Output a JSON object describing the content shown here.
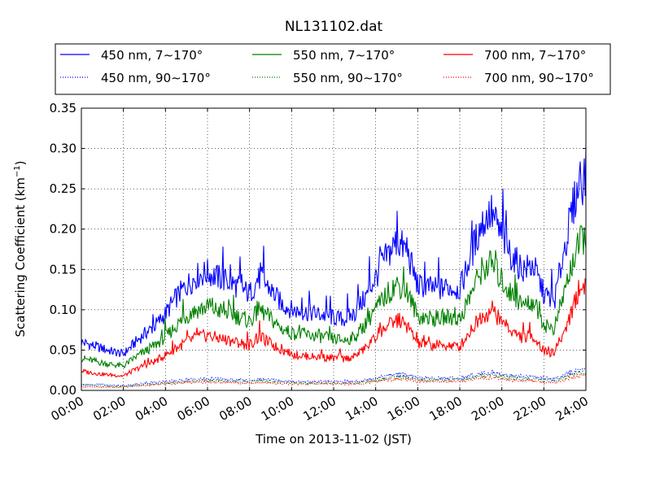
{
  "chart_data": {
    "type": "line",
    "title": "NL131102.dat",
    "xlabel": "Time on 2013-11-02 (JST)",
    "ylabel_main": "Scattering Coefficient (km",
    "ylabel_sup": "−1",
    "ylabel_tail": ")",
    "xlim": [
      "00:00",
      "24:00"
    ],
    "ylim": [
      0,
      0.35
    ],
    "x_ticks": [
      "00:00",
      "02:00",
      "04:00",
      "06:00",
      "08:00",
      "10:00",
      "12:00",
      "14:00",
      "16:00",
      "18:00",
      "20:00",
      "22:00",
      "24:00"
    ],
    "y_ticks": [
      "0.00",
      "0.05",
      "0.10",
      "0.15",
      "0.20",
      "0.25",
      "0.30",
      "0.35"
    ],
    "grid": true,
    "legend_position": "top",
    "x_hours": [
      0,
      0.5,
      1,
      1.5,
      2,
      2.5,
      3,
      3.5,
      4,
      4.5,
      5,
      5.5,
      6,
      6.5,
      7,
      7.5,
      8,
      8.5,
      9,
      9.5,
      10,
      10.5,
      11,
      11.5,
      12,
      12.5,
      13,
      13.5,
      14,
      14.5,
      15,
      15.5,
      16,
      16.5,
      17,
      17.5,
      18,
      18.5,
      19,
      19.5,
      20,
      20.5,
      21,
      21.5,
      22,
      22.5,
      23,
      23.5,
      24
    ],
    "series": [
      {
        "name": "450 nm, 7∼170°",
        "color": "#0000ff",
        "style": "solid",
        "values": [
          0.06,
          0.056,
          0.052,
          0.048,
          0.045,
          0.058,
          0.07,
          0.08,
          0.095,
          0.115,
          0.13,
          0.142,
          0.146,
          0.14,
          0.135,
          0.128,
          0.12,
          0.14,
          0.125,
          0.108,
          0.1,
          0.097,
          0.096,
          0.093,
          0.09,
          0.088,
          0.095,
          0.115,
          0.14,
          0.165,
          0.185,
          0.172,
          0.13,
          0.128,
          0.125,
          0.128,
          0.125,
          0.165,
          0.205,
          0.22,
          0.19,
          0.165,
          0.15,
          0.155,
          0.12,
          0.11,
          0.18,
          0.24,
          0.27
        ]
      },
      {
        "name": "550 nm, 7∼170°",
        "color": "#008000",
        "style": "solid",
        "values": [
          0.04,
          0.037,
          0.034,
          0.032,
          0.03,
          0.04,
          0.048,
          0.056,
          0.066,
          0.08,
          0.092,
          0.1,
          0.103,
          0.099,
          0.096,
          0.091,
          0.086,
          0.1,
          0.089,
          0.077,
          0.071,
          0.069,
          0.068,
          0.066,
          0.064,
          0.062,
          0.066,
          0.082,
          0.1,
          0.118,
          0.132,
          0.122,
          0.092,
          0.09,
          0.089,
          0.091,
          0.088,
          0.118,
          0.148,
          0.158,
          0.136,
          0.118,
          0.106,
          0.11,
          0.082,
          0.076,
          0.125,
          0.17,
          0.195
        ]
      },
      {
        "name": "700 nm, 7∼170°",
        "color": "#ff0000",
        "style": "solid",
        "values": [
          0.024,
          0.022,
          0.02,
          0.019,
          0.018,
          0.025,
          0.031,
          0.036,
          0.044,
          0.052,
          0.06,
          0.066,
          0.068,
          0.065,
          0.062,
          0.059,
          0.056,
          0.066,
          0.058,
          0.05,
          0.045,
          0.043,
          0.042,
          0.041,
          0.04,
          0.039,
          0.042,
          0.052,
          0.065,
          0.078,
          0.087,
          0.08,
          0.058,
          0.056,
          0.055,
          0.056,
          0.054,
          0.074,
          0.092,
          0.098,
          0.085,
          0.073,
          0.065,
          0.068,
          0.048,
          0.046,
          0.075,
          0.112,
          0.135
        ]
      },
      {
        "name": "450 nm, 90∼170°",
        "color": "#0000ff",
        "style": "dotted",
        "values": [
          0.008,
          0.007,
          0.007,
          0.006,
          0.006,
          0.007,
          0.009,
          0.01,
          0.011,
          0.012,
          0.013,
          0.014,
          0.014,
          0.014,
          0.013,
          0.013,
          0.012,
          0.014,
          0.013,
          0.012,
          0.011,
          0.011,
          0.011,
          0.011,
          0.011,
          0.011,
          0.011,
          0.013,
          0.016,
          0.018,
          0.02,
          0.019,
          0.015,
          0.015,
          0.015,
          0.015,
          0.015,
          0.018,
          0.021,
          0.022,
          0.02,
          0.018,
          0.017,
          0.017,
          0.015,
          0.014,
          0.019,
          0.024,
          0.027
        ]
      },
      {
        "name": "550 nm, 90∼170°",
        "color": "#008000",
        "style": "dotted",
        "values": [
          0.006,
          0.006,
          0.005,
          0.005,
          0.005,
          0.006,
          0.007,
          0.008,
          0.009,
          0.01,
          0.011,
          0.012,
          0.012,
          0.012,
          0.011,
          0.011,
          0.01,
          0.012,
          0.011,
          0.01,
          0.009,
          0.009,
          0.009,
          0.009,
          0.009,
          0.009,
          0.009,
          0.011,
          0.013,
          0.015,
          0.017,
          0.016,
          0.013,
          0.013,
          0.013,
          0.013,
          0.013,
          0.015,
          0.018,
          0.019,
          0.017,
          0.015,
          0.014,
          0.014,
          0.012,
          0.012,
          0.016,
          0.02,
          0.023
        ]
      },
      {
        "name": "700 nm, 90∼170°",
        "color": "#ff0000",
        "style": "dotted",
        "values": [
          0.005,
          0.004,
          0.004,
          0.004,
          0.004,
          0.005,
          0.006,
          0.007,
          0.008,
          0.009,
          0.01,
          0.01,
          0.01,
          0.01,
          0.01,
          0.009,
          0.009,
          0.01,
          0.009,
          0.008,
          0.008,
          0.008,
          0.008,
          0.008,
          0.008,
          0.008,
          0.008,
          0.009,
          0.011,
          0.013,
          0.014,
          0.013,
          0.011,
          0.011,
          0.011,
          0.011,
          0.011,
          0.013,
          0.015,
          0.016,
          0.014,
          0.013,
          0.012,
          0.012,
          0.01,
          0.01,
          0.013,
          0.017,
          0.019
        ]
      }
    ],
    "legend_order": [
      0,
      1,
      2,
      3,
      4,
      5
    ]
  }
}
